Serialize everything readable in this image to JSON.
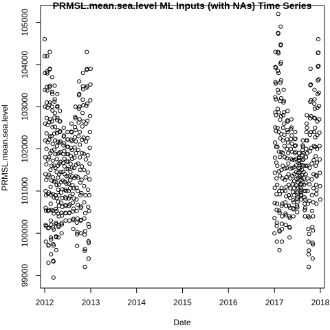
{
  "chart_data": {
    "type": "scatter",
    "title": "PRMSL.mean.sea.level ML Inputs (with NAs) Time Series",
    "xlabel": "Date",
    "ylabel": "PRMSL.mean.sea.level",
    "x_ticks": [
      "2012",
      "2013",
      "2014",
      "2015",
      "2016",
      "2017",
      "2018"
    ],
    "y_ticks": [
      "99000",
      "100000",
      "101000",
      "102000",
      "103000",
      "104000",
      "105000"
    ],
    "xlim": [
      "2011-11-29",
      "2018-02-03"
    ],
    "ylim": [
      98700,
      105400
    ],
    "grid": false,
    "marker": "open-circle",
    "color": "#000000",
    "series": [
      {
        "x": [
          "2012-01-01",
          "2012-01-10",
          "2012-01-20",
          "2012-01-31",
          "2012-02-10",
          "2012-02-20",
          "2012-03-01",
          "2012-03-10",
          "2012-03-20",
          "2012-04-01",
          "2012-04-10",
          "2012-04-20",
          "2012-05-01",
          "2012-05-15",
          "2012-06-01",
          "2012-06-15",
          "2012-07-01",
          "2012-07-15",
          "2012-08-01",
          "2012-08-15",
          "2012-09-01",
          "2012-09-15",
          "2012-10-01",
          "2012-10-15",
          "2012-11-01",
          "2012-11-15",
          "2012-12-01",
          "2012-12-15",
          "2012-12-31"
        ],
        "values": [
          104600,
          99800,
          104200,
          99300,
          104300,
          99500,
          103700,
          98950,
          103500,
          99600,
          103300,
          99900,
          102900,
          100000,
          102500,
          100300,
          102400,
          100300,
          102600,
          100100,
          103000,
          99700,
          103600,
          100000,
          103800,
          99200,
          104300,
          99400,
          103900
        ]
      },
      {
        "x": [
          "2017-01-01",
          "2017-01-10",
          "2017-01-20",
          "2017-01-31",
          "2017-02-10",
          "2017-02-20",
          "2017-03-01",
          "2017-03-15",
          "2017-04-01",
          "2017-04-15",
          "2017-05-01",
          "2017-05-15",
          "2017-06-01",
          "2017-06-15",
          "2017-07-01",
          "2017-07-15",
          "2017-08-01",
          "2017-08-15",
          "2017-09-01",
          "2017-09-15",
          "2017-10-01",
          "2017-10-15",
          "2017-11-01",
          "2017-11-15",
          "2017-12-01",
          "2017-12-15",
          "2017-12-31"
        ],
        "values": [
          100000,
          104300,
          99800,
          105200,
          99600,
          104900,
          99800,
          103400,
          100200,
          102900,
          99900,
          102700,
          100400,
          102400,
          100500,
          101900,
          100800,
          102200,
          100400,
          102800,
          99200,
          103900,
          99400,
          103400,
          100700,
          104600,
          100800
        ]
      }
    ]
  }
}
